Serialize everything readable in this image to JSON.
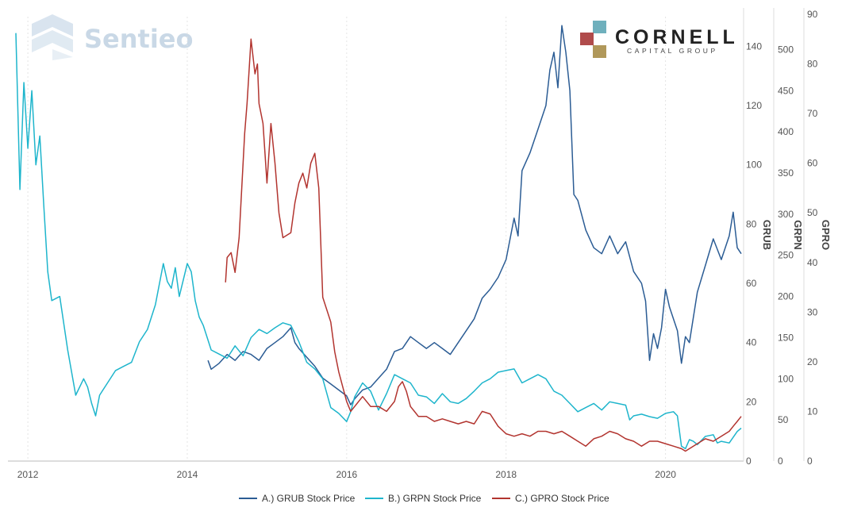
{
  "watermark": {
    "text": "Sentieo",
    "icon": "sentieo-logo-icon"
  },
  "logo": {
    "name": "CORNELL",
    "subtitle": "CAPITAL GROUP",
    "colors": {
      "teal": "#6fb0bd",
      "red": "#b04b4b",
      "gold": "#b0985a"
    }
  },
  "chart_data": {
    "type": "line",
    "title": "",
    "xlabel": "",
    "x_range": [
      2011.75,
      2020.98
    ],
    "x_ticks": [
      2012,
      2014,
      2016,
      2018,
      2020
    ],
    "x_tick_labels": [
      "2012",
      "2014",
      "2016",
      "2018",
      "2020"
    ],
    "grid": false,
    "legend_position": "bottom-center",
    "axes": [
      {
        "id": "GRUB",
        "label": "GRUB",
        "range": [
          0,
          150
        ],
        "ticks": [
          0,
          20,
          40,
          60,
          80,
          100,
          120,
          140
        ]
      },
      {
        "id": "GRPN",
        "label": "GRPN",
        "range": [
          0,
          540
        ],
        "ticks": [
          0,
          50,
          100,
          150,
          200,
          250,
          300,
          350,
          400,
          450,
          500
        ]
      },
      {
        "id": "GPRO",
        "label": "GPRO",
        "range": [
          0,
          90
        ],
        "ticks": [
          0,
          10,
          20,
          30,
          40,
          50,
          60,
          70,
          80,
          90
        ]
      }
    ],
    "series": [
      {
        "name": "A.) GRUB Stock Price",
        "axis": "GRUB",
        "color": "#2b5c94",
        "points": [
          [
            2014.26,
            34
          ],
          [
            2014.3,
            31
          ],
          [
            2014.4,
            33
          ],
          [
            2014.5,
            36
          ],
          [
            2014.6,
            34
          ],
          [
            2014.7,
            37
          ],
          [
            2014.8,
            36
          ],
          [
            2014.9,
            34
          ],
          [
            2015.0,
            38
          ],
          [
            2015.1,
            40
          ],
          [
            2015.2,
            42
          ],
          [
            2015.3,
            45
          ],
          [
            2015.35,
            40
          ],
          [
            2015.4,
            38
          ],
          [
            2015.5,
            35
          ],
          [
            2015.6,
            32
          ],
          [
            2015.7,
            28
          ],
          [
            2015.8,
            26
          ],
          [
            2015.9,
            24
          ],
          [
            2016.0,
            22
          ],
          [
            2016.05,
            19
          ],
          [
            2016.1,
            21
          ],
          [
            2016.2,
            24
          ],
          [
            2016.3,
            25
          ],
          [
            2016.4,
            28
          ],
          [
            2016.5,
            31
          ],
          [
            2016.6,
            37
          ],
          [
            2016.7,
            38
          ],
          [
            2016.8,
            42
          ],
          [
            2016.9,
            40
          ],
          [
            2017.0,
            38
          ],
          [
            2017.1,
            40
          ],
          [
            2017.2,
            38
          ],
          [
            2017.3,
            36
          ],
          [
            2017.4,
            40
          ],
          [
            2017.5,
            44
          ],
          [
            2017.6,
            48
          ],
          [
            2017.7,
            55
          ],
          [
            2017.8,
            58
          ],
          [
            2017.9,
            62
          ],
          [
            2018.0,
            68
          ],
          [
            2018.1,
            82
          ],
          [
            2018.15,
            76
          ],
          [
            2018.2,
            98
          ],
          [
            2018.3,
            104
          ],
          [
            2018.4,
            112
          ],
          [
            2018.5,
            120
          ],
          [
            2018.55,
            132
          ],
          [
            2018.6,
            138
          ],
          [
            2018.65,
            126
          ],
          [
            2018.7,
            147
          ],
          [
            2018.75,
            138
          ],
          [
            2018.8,
            125
          ],
          [
            2018.85,
            90
          ],
          [
            2018.9,
            88
          ],
          [
            2019.0,
            78
          ],
          [
            2019.1,
            72
          ],
          [
            2019.2,
            70
          ],
          [
            2019.3,
            76
          ],
          [
            2019.4,
            70
          ],
          [
            2019.5,
            74
          ],
          [
            2019.6,
            64
          ],
          [
            2019.7,
            60
          ],
          [
            2019.75,
            54
          ],
          [
            2019.8,
            34
          ],
          [
            2019.85,
            43
          ],
          [
            2019.9,
            38
          ],
          [
            2019.95,
            45
          ],
          [
            2020.0,
            58
          ],
          [
            2020.05,
            52
          ],
          [
            2020.15,
            44
          ],
          [
            2020.2,
            33
          ],
          [
            2020.25,
            42
          ],
          [
            2020.3,
            40
          ],
          [
            2020.4,
            57
          ],
          [
            2020.5,
            66
          ],
          [
            2020.6,
            75
          ],
          [
            2020.7,
            68
          ],
          [
            2020.8,
            76
          ],
          [
            2020.85,
            84
          ],
          [
            2020.9,
            72
          ],
          [
            2020.95,
            70
          ]
        ]
      },
      {
        "name": "B.) GRPN Stock Price",
        "axis": "GRPN",
        "color": "#1eb5cc",
        "points": [
          [
            2011.85,
            520
          ],
          [
            2011.9,
            330
          ],
          [
            2011.95,
            460
          ],
          [
            2012.0,
            380
          ],
          [
            2012.05,
            450
          ],
          [
            2012.1,
            360
          ],
          [
            2012.15,
            395
          ],
          [
            2012.2,
            310
          ],
          [
            2012.25,
            230
          ],
          [
            2012.3,
            195
          ],
          [
            2012.4,
            200
          ],
          [
            2012.5,
            135
          ],
          [
            2012.6,
            80
          ],
          [
            2012.7,
            100
          ],
          [
            2012.75,
            90
          ],
          [
            2012.8,
            70
          ],
          [
            2012.85,
            55
          ],
          [
            2012.9,
            80
          ],
          [
            2013.0,
            95
          ],
          [
            2013.1,
            110
          ],
          [
            2013.2,
            115
          ],
          [
            2013.3,
            120
          ],
          [
            2013.4,
            145
          ],
          [
            2013.5,
            160
          ],
          [
            2013.6,
            190
          ],
          [
            2013.65,
            215
          ],
          [
            2013.7,
            240
          ],
          [
            2013.75,
            218
          ],
          [
            2013.8,
            210
          ],
          [
            2013.85,
            235
          ],
          [
            2013.9,
            200
          ],
          [
            2014.0,
            240
          ],
          [
            2014.05,
            230
          ],
          [
            2014.1,
            195
          ],
          [
            2014.15,
            175
          ],
          [
            2014.2,
            165
          ],
          [
            2014.3,
            135
          ],
          [
            2014.4,
            130
          ],
          [
            2014.5,
            125
          ],
          [
            2014.6,
            140
          ],
          [
            2014.7,
            128
          ],
          [
            2014.8,
            150
          ],
          [
            2014.9,
            160
          ],
          [
            2015.0,
            155
          ],
          [
            2015.1,
            162
          ],
          [
            2015.2,
            168
          ],
          [
            2015.3,
            165
          ],
          [
            2015.4,
            145
          ],
          [
            2015.5,
            120
          ],
          [
            2015.6,
            112
          ],
          [
            2015.7,
            100
          ],
          [
            2015.8,
            65
          ],
          [
            2015.9,
            58
          ],
          [
            2016.0,
            48
          ],
          [
            2016.05,
            60
          ],
          [
            2016.1,
            78
          ],
          [
            2016.2,
            95
          ],
          [
            2016.3,
            85
          ],
          [
            2016.4,
            62
          ],
          [
            2016.5,
            82
          ],
          [
            2016.6,
            105
          ],
          [
            2016.7,
            100
          ],
          [
            2016.8,
            95
          ],
          [
            2016.9,
            80
          ],
          [
            2017.0,
            78
          ],
          [
            2017.1,
            70
          ],
          [
            2017.2,
            82
          ],
          [
            2017.3,
            72
          ],
          [
            2017.4,
            70
          ],
          [
            2017.5,
            76
          ],
          [
            2017.6,
            85
          ],
          [
            2017.7,
            95
          ],
          [
            2017.8,
            100
          ],
          [
            2017.9,
            108
          ],
          [
            2018.0,
            110
          ],
          [
            2018.1,
            112
          ],
          [
            2018.2,
            95
          ],
          [
            2018.3,
            100
          ],
          [
            2018.4,
            105
          ],
          [
            2018.5,
            100
          ],
          [
            2018.6,
            85
          ],
          [
            2018.7,
            80
          ],
          [
            2018.8,
            70
          ],
          [
            2018.9,
            60
          ],
          [
            2019.0,
            65
          ],
          [
            2019.1,
            70
          ],
          [
            2019.2,
            62
          ],
          [
            2019.3,
            72
          ],
          [
            2019.4,
            70
          ],
          [
            2019.5,
            68
          ],
          [
            2019.55,
            50
          ],
          [
            2019.6,
            55
          ],
          [
            2019.7,
            57
          ],
          [
            2019.8,
            54
          ],
          [
            2019.9,
            52
          ],
          [
            2020.0,
            58
          ],
          [
            2020.1,
            60
          ],
          [
            2020.15,
            55
          ],
          [
            2020.2,
            18
          ],
          [
            2020.25,
            15
          ],
          [
            2020.3,
            26
          ],
          [
            2020.35,
            24
          ],
          [
            2020.4,
            20
          ],
          [
            2020.5,
            30
          ],
          [
            2020.6,
            32
          ],
          [
            2020.65,
            22
          ],
          [
            2020.7,
            24
          ],
          [
            2020.8,
            22
          ],
          [
            2020.9,
            36
          ],
          [
            2020.95,
            40
          ]
        ]
      },
      {
        "name": "C.) GPRO Stock Price",
        "axis": "GPRO",
        "color": "#b2342f",
        "points": [
          [
            2014.48,
            36
          ],
          [
            2014.5,
            41
          ],
          [
            2014.55,
            42
          ],
          [
            2014.6,
            38
          ],
          [
            2014.65,
            45
          ],
          [
            2014.7,
            60
          ],
          [
            2014.72,
            66
          ],
          [
            2014.75,
            72
          ],
          [
            2014.8,
            85
          ],
          [
            2014.85,
            78
          ],
          [
            2014.88,
            80
          ],
          [
            2014.9,
            72
          ],
          [
            2014.95,
            68
          ],
          [
            2015.0,
            56
          ],
          [
            2015.05,
            68
          ],
          [
            2015.1,
            60
          ],
          [
            2015.15,
            50
          ],
          [
            2015.2,
            45
          ],
          [
            2015.3,
            46
          ],
          [
            2015.35,
            52
          ],
          [
            2015.4,
            56
          ],
          [
            2015.45,
            58
          ],
          [
            2015.5,
            55
          ],
          [
            2015.55,
            60
          ],
          [
            2015.6,
            62
          ],
          [
            2015.65,
            55
          ],
          [
            2015.7,
            33
          ],
          [
            2015.8,
            28
          ],
          [
            2015.85,
            22
          ],
          [
            2015.9,
            18
          ],
          [
            2016.0,
            12
          ],
          [
            2016.05,
            10
          ],
          [
            2016.1,
            11
          ],
          [
            2016.2,
            13
          ],
          [
            2016.3,
            11
          ],
          [
            2016.4,
            11
          ],
          [
            2016.5,
            10
          ],
          [
            2016.6,
            12
          ],
          [
            2016.65,
            15
          ],
          [
            2016.7,
            16
          ],
          [
            2016.75,
            14
          ],
          [
            2016.8,
            11
          ],
          [
            2016.85,
            10
          ],
          [
            2016.9,
            9
          ],
          [
            2017.0,
            9
          ],
          [
            2017.1,
            8
          ],
          [
            2017.2,
            8.5
          ],
          [
            2017.3,
            8
          ],
          [
            2017.4,
            7.5
          ],
          [
            2017.5,
            8
          ],
          [
            2017.6,
            7.5
          ],
          [
            2017.7,
            10
          ],
          [
            2017.8,
            9.5
          ],
          [
            2017.9,
            7
          ],
          [
            2018.0,
            5.5
          ],
          [
            2018.1,
            5
          ],
          [
            2018.2,
            5.5
          ],
          [
            2018.3,
            5
          ],
          [
            2018.4,
            6
          ],
          [
            2018.5,
            6
          ],
          [
            2018.6,
            5.5
          ],
          [
            2018.7,
            6
          ],
          [
            2018.8,
            5
          ],
          [
            2018.9,
            4
          ],
          [
            2019.0,
            3
          ],
          [
            2019.1,
            4.5
          ],
          [
            2019.2,
            5
          ],
          [
            2019.3,
            6
          ],
          [
            2019.4,
            5.5
          ],
          [
            2019.5,
            4.5
          ],
          [
            2019.6,
            4
          ],
          [
            2019.7,
            3
          ],
          [
            2019.8,
            4
          ],
          [
            2019.9,
            4
          ],
          [
            2020.0,
            3.5
          ],
          [
            2020.1,
            3
          ],
          [
            2020.2,
            2.5
          ],
          [
            2020.25,
            2
          ],
          [
            2020.3,
            2.5
          ],
          [
            2020.4,
            3.5
          ],
          [
            2020.5,
            4.5
          ],
          [
            2020.6,
            4
          ],
          [
            2020.7,
            5
          ],
          [
            2020.8,
            6
          ],
          [
            2020.85,
            7
          ],
          [
            2020.9,
            8
          ],
          [
            2020.95,
            9
          ]
        ]
      }
    ]
  }
}
